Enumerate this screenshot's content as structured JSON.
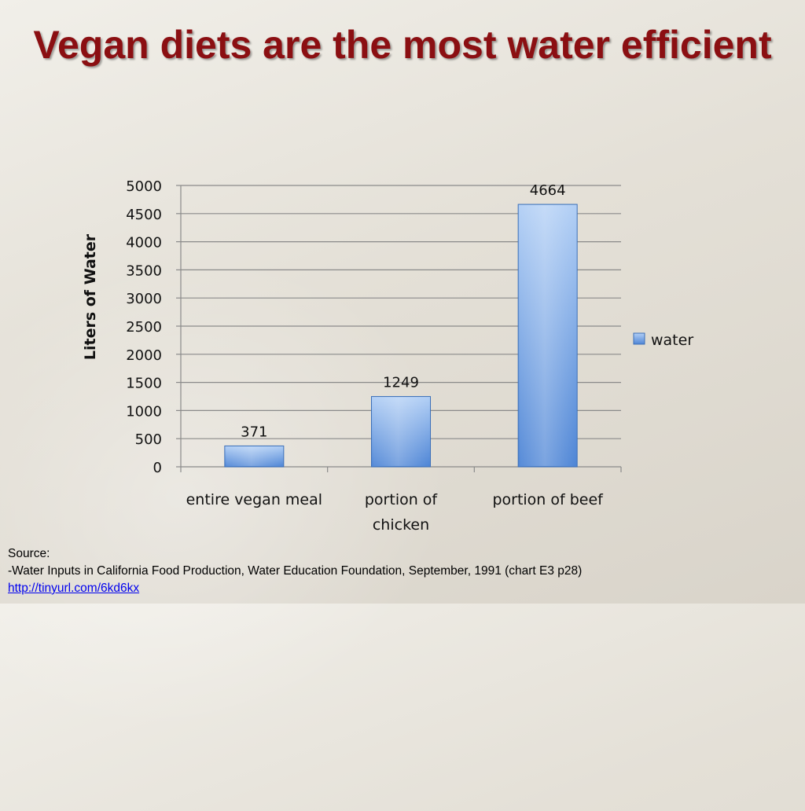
{
  "slide": {
    "title": "Vegan diets are the most water efficient"
  },
  "chart_data": {
    "type": "bar",
    "title": "",
    "xlabel": "",
    "ylabel": "Liters of Water",
    "ylim": [
      0,
      5000
    ],
    "yticks": [
      0,
      500,
      1000,
      1500,
      2000,
      2500,
      3000,
      3500,
      4000,
      4500,
      5000
    ],
    "categories": [
      "entire vegan meal",
      "portion of chicken",
      "portion of beef"
    ],
    "category_lines": [
      [
        "entire vegan meal"
      ],
      [
        "portion of",
        "chicken"
      ],
      [
        "portion of beef"
      ]
    ],
    "series": [
      {
        "name": "water",
        "values": [
          371,
          1249,
          4664
        ],
        "color": "#4f86d6"
      }
    ],
    "data_labels": [
      "371",
      "1249",
      "4664"
    ],
    "grid": true,
    "legend": "right"
  },
  "source": {
    "label": "Source:",
    "citation": "-Water Inputs in California Food Production, Water Education Foundation, September, 1991 (chart E3 p28)",
    "link_text": "http://tinyurl.com/6kd6kx"
  }
}
